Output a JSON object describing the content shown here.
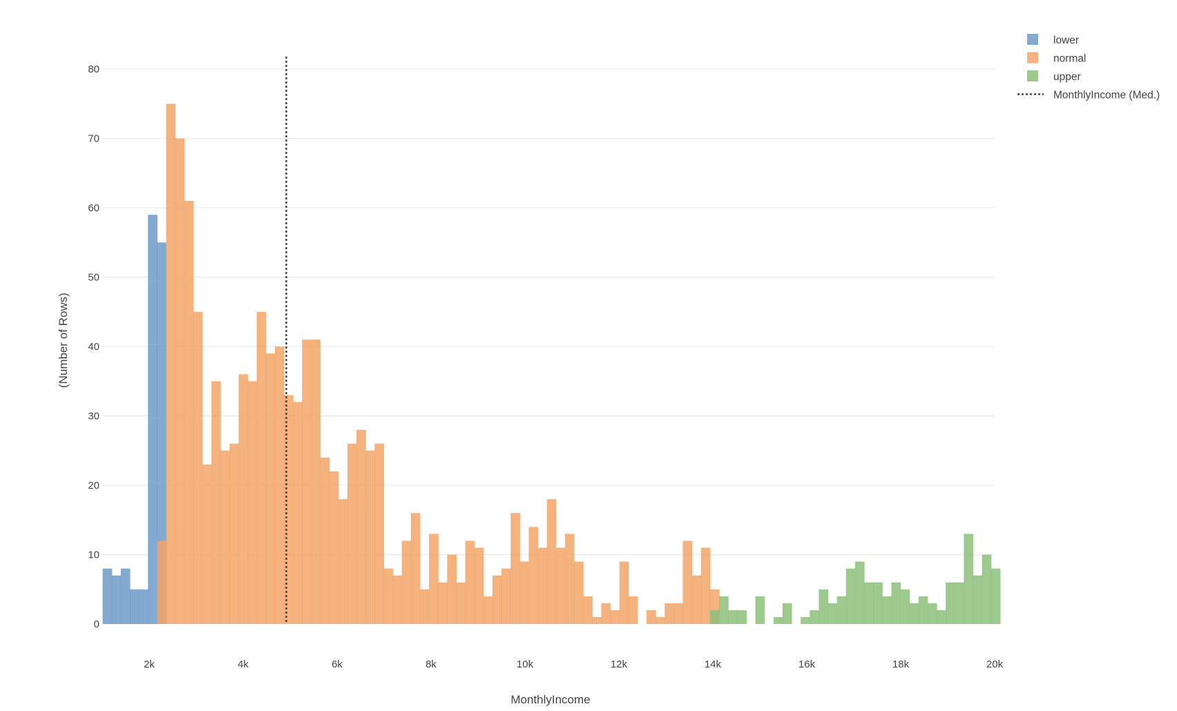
{
  "chart_data": {
    "type": "histogram",
    "xlabel": "MonthlyIncome",
    "ylabel": "(Number of Rows)",
    "xlim": [
      1000,
      20000
    ],
    "ylim": [
      0,
      82
    ],
    "grid": true,
    "legend_position": "top-right",
    "x_ticks": [
      {
        "value": 2000,
        "label": "2k"
      },
      {
        "value": 4000,
        "label": "4k"
      },
      {
        "value": 6000,
        "label": "6k"
      },
      {
        "value": 8000,
        "label": "8k"
      },
      {
        "value": 10000,
        "label": "10k"
      },
      {
        "value": 12000,
        "label": "12k"
      },
      {
        "value": 14000,
        "label": "14k"
      },
      {
        "value": 16000,
        "label": "16k"
      },
      {
        "value": 18000,
        "label": "18k"
      },
      {
        "value": 20000,
        "label": "20k"
      }
    ],
    "y_ticks": [
      {
        "value": 0,
        "label": "0"
      },
      {
        "value": 10,
        "label": "10"
      },
      {
        "value": 20,
        "label": "20"
      },
      {
        "value": 30,
        "label": "30"
      },
      {
        "value": 40,
        "label": "40"
      },
      {
        "value": 50,
        "label": "50"
      },
      {
        "value": 60,
        "label": "60"
      },
      {
        "value": 70,
        "label": "70"
      },
      {
        "value": 80,
        "label": "80"
      }
    ],
    "bin_width": 193,
    "series": [
      {
        "name": "lower",
        "color": "#6f9bc9",
        "bins": [
          {
            "x0": 1009,
            "count": 8
          },
          {
            "x0": 1202,
            "count": 7
          },
          {
            "x0": 1395,
            "count": 8
          },
          {
            "x0": 1588,
            "count": 5
          },
          {
            "x0": 1781,
            "count": 5
          },
          {
            "x0": 1974,
            "count": 59
          },
          {
            "x0": 2167,
            "count": 55
          }
        ]
      },
      {
        "name": "normal",
        "color": "#f2a468",
        "bins": [
          {
            "x0": 2167,
            "count": 12
          },
          {
            "x0": 2360,
            "count": 75
          },
          {
            "x0": 2553,
            "count": 70
          },
          {
            "x0": 2746,
            "count": 61
          },
          {
            "x0": 2939,
            "count": 45
          },
          {
            "x0": 3132,
            "count": 23
          },
          {
            "x0": 3325,
            "count": 35
          },
          {
            "x0": 3518,
            "count": 25
          },
          {
            "x0": 3711,
            "count": 26
          },
          {
            "x0": 3904,
            "count": 36
          },
          {
            "x0": 4097,
            "count": 35
          },
          {
            "x0": 4290,
            "count": 45
          },
          {
            "x0": 4483,
            "count": 39
          },
          {
            "x0": 4676,
            "count": 40
          },
          {
            "x0": 4869,
            "count": 33
          },
          {
            "x0": 5062,
            "count": 32
          },
          {
            "x0": 5255,
            "count": 41
          },
          {
            "x0": 5448,
            "count": 41
          },
          {
            "x0": 5641,
            "count": 24
          },
          {
            "x0": 5834,
            "count": 22
          },
          {
            "x0": 6027,
            "count": 18
          },
          {
            "x0": 6220,
            "count": 26
          },
          {
            "x0": 6413,
            "count": 28
          },
          {
            "x0": 6606,
            "count": 25
          },
          {
            "x0": 6799,
            "count": 26
          },
          {
            "x0": 6992,
            "count": 8
          },
          {
            "x0": 7185,
            "count": 7
          },
          {
            "x0": 7378,
            "count": 12
          },
          {
            "x0": 7571,
            "count": 16
          },
          {
            "x0": 7764,
            "count": 5
          },
          {
            "x0": 7957,
            "count": 13
          },
          {
            "x0": 8150,
            "count": 6
          },
          {
            "x0": 8343,
            "count": 10
          },
          {
            "x0": 8536,
            "count": 6
          },
          {
            "x0": 8729,
            "count": 12
          },
          {
            "x0": 8922,
            "count": 11
          },
          {
            "x0": 9115,
            "count": 4
          },
          {
            "x0": 9308,
            "count": 7
          },
          {
            "x0": 9501,
            "count": 8
          },
          {
            "x0": 9694,
            "count": 16
          },
          {
            "x0": 9887,
            "count": 9
          },
          {
            "x0": 10080,
            "count": 14
          },
          {
            "x0": 10273,
            "count": 11
          },
          {
            "x0": 10466,
            "count": 18
          },
          {
            "x0": 10659,
            "count": 11
          },
          {
            "x0": 10852,
            "count": 13
          },
          {
            "x0": 11045,
            "count": 9
          },
          {
            "x0": 11238,
            "count": 4
          },
          {
            "x0": 11431,
            "count": 1
          },
          {
            "x0": 11624,
            "count": 3
          },
          {
            "x0": 11817,
            "count": 2
          },
          {
            "x0": 12010,
            "count": 9
          },
          {
            "x0": 12203,
            "count": 4
          },
          {
            "x0": 12396,
            "count": 0
          },
          {
            "x0": 12589,
            "count": 2
          },
          {
            "x0": 12782,
            "count": 1
          },
          {
            "x0": 12975,
            "count": 3
          },
          {
            "x0": 13168,
            "count": 3
          },
          {
            "x0": 13361,
            "count": 12
          },
          {
            "x0": 13554,
            "count": 7
          },
          {
            "x0": 13747,
            "count": 11
          },
          {
            "x0": 13940,
            "count": 5
          }
        ]
      },
      {
        "name": "upper",
        "color": "#8cbf7b",
        "bins": [
          {
            "x0": 13940,
            "count": 2
          },
          {
            "x0": 14133,
            "count": 4
          },
          {
            "x0": 14326,
            "count": 2
          },
          {
            "x0": 14519,
            "count": 2
          },
          {
            "x0": 14712,
            "count": 0
          },
          {
            "x0": 14905,
            "count": 4
          },
          {
            "x0": 15098,
            "count": 0
          },
          {
            "x0": 15291,
            "count": 1
          },
          {
            "x0": 15484,
            "count": 3
          },
          {
            "x0": 15677,
            "count": 0
          },
          {
            "x0": 15870,
            "count": 1
          },
          {
            "x0": 16063,
            "count": 2
          },
          {
            "x0": 16256,
            "count": 5
          },
          {
            "x0": 16449,
            "count": 3
          },
          {
            "x0": 16642,
            "count": 4
          },
          {
            "x0": 16835,
            "count": 8
          },
          {
            "x0": 17028,
            "count": 9
          },
          {
            "x0": 17221,
            "count": 6
          },
          {
            "x0": 17414,
            "count": 6
          },
          {
            "x0": 17607,
            "count": 4
          },
          {
            "x0": 17800,
            "count": 6
          },
          {
            "x0": 17993,
            "count": 5
          },
          {
            "x0": 18186,
            "count": 3
          },
          {
            "x0": 18379,
            "count": 4
          },
          {
            "x0": 18572,
            "count": 3
          },
          {
            "x0": 18765,
            "count": 2
          },
          {
            "x0": 18958,
            "count": 6
          },
          {
            "x0": 19151,
            "count": 6
          },
          {
            "x0": 19344,
            "count": 13
          },
          {
            "x0": 19537,
            "count": 7
          },
          {
            "x0": 19730,
            "count": 10
          },
          {
            "x0": 19923,
            "count": 8
          }
        ]
      }
    ],
    "median_line": {
      "name": "MonthlyIncome (Med.)",
      "value": 4919,
      "color": "#444444",
      "style": "dotted"
    }
  }
}
